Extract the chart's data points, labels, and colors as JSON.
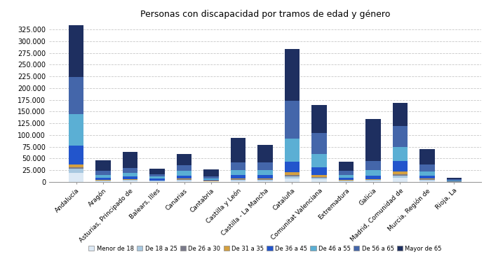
{
  "title": "Personas con discapacidad por tramos de edad y género",
  "categories": [
    "Andalucía",
    "Aragón",
    "Asturias, Principado de",
    "Balears, Illes",
    "Canarias",
    "Cantabria",
    "Castilla y León",
    "Castilla - La Mancha",
    "Cataluña",
    "Comunitat Valenciana",
    "Extremadura",
    "Galicia",
    "Madrid, Comunidad de",
    "Murcia, Región de",
    "Rioja, La"
  ],
  "age_groups": [
    "Menor de 18",
    "De 18 a 25",
    "De 26 a 30",
    "De 31 a 35",
    "De 36 a 45",
    "De 46 a 55",
    "De 56 a 65",
    "Mayor de 65"
  ],
  "colors": [
    "#dce9f5",
    "#a8c8e0",
    "#7a7a8a",
    "#d4a040",
    "#2255cc",
    "#5bafd4",
    "#4466aa",
    "#1e2f60"
  ],
  "data": {
    "Andalucía": [
      20000,
      8000,
      4000,
      5000,
      40000,
      67000,
      80000,
      110000
    ],
    "Aragón": [
      2000,
      1000,
      500,
      1000,
      4000,
      7000,
      8000,
      22000
    ],
    "Asturias, Principado de": [
      2500,
      1500,
      700,
      1500,
      5000,
      8000,
      10000,
      35000
    ],
    "Balears, Illes": [
      1500,
      800,
      500,
      800,
      3500,
      4500,
      5500,
      11000
    ],
    "Canarias": [
      3000,
      1500,
      800,
      1500,
      7000,
      10000,
      12000,
      24000
    ],
    "Cantabria": [
      1000,
      500,
      300,
      600,
      2000,
      3500,
      4500,
      14000
    ],
    "Castilla y León": [
      3500,
      1500,
      800,
      1500,
      7000,
      11000,
      16000,
      52000
    ],
    "Castilla - La Mancha": [
      3500,
      1500,
      800,
      1500,
      7000,
      11000,
      16000,
      38000
    ],
    "Cataluña": [
      8000,
      4000,
      3000,
      6000,
      22000,
      50000,
      80000,
      110000
    ],
    "Comunitat Valenciana": [
      6000,
      3000,
      2000,
      4000,
      16000,
      28000,
      45000,
      60000
    ],
    "Extremadura": [
      2000,
      1000,
      500,
      1000,
      4000,
      7000,
      9000,
      19000
    ],
    "Galicia": [
      3000,
      1500,
      700,
      1500,
      6000,
      12000,
      20000,
      90000
    ],
    "Madrid, Comunidad de": [
      9000,
      4000,
      3000,
      6000,
      22000,
      30000,
      45000,
      50000
    ],
    "Murcia, Región de": [
      3000,
      1500,
      800,
      1500,
      6000,
      10000,
      14000,
      33000
    ],
    "Rioja, La": [
      400,
      200,
      150,
      300,
      1000,
      1500,
      2000,
      4000
    ]
  },
  "ylim": [
    0,
    340000
  ],
  "yticks": [
    0,
    25000,
    50000,
    75000,
    100000,
    125000,
    150000,
    175000,
    200000,
    225000,
    250000,
    275000,
    300000,
    325000
  ],
  "ytick_labels": [
    "0",
    "25.000",
    "50.000",
    "75.000",
    "100.000",
    "125.000",
    "150.000",
    "175.000",
    "200.000",
    "225.000",
    "250.000",
    "275.000",
    "300.000",
    "325.000"
  ],
  "bgcolor": "#ffffff",
  "grid_color": "#c8c8c8",
  "bar_width": 0.55
}
